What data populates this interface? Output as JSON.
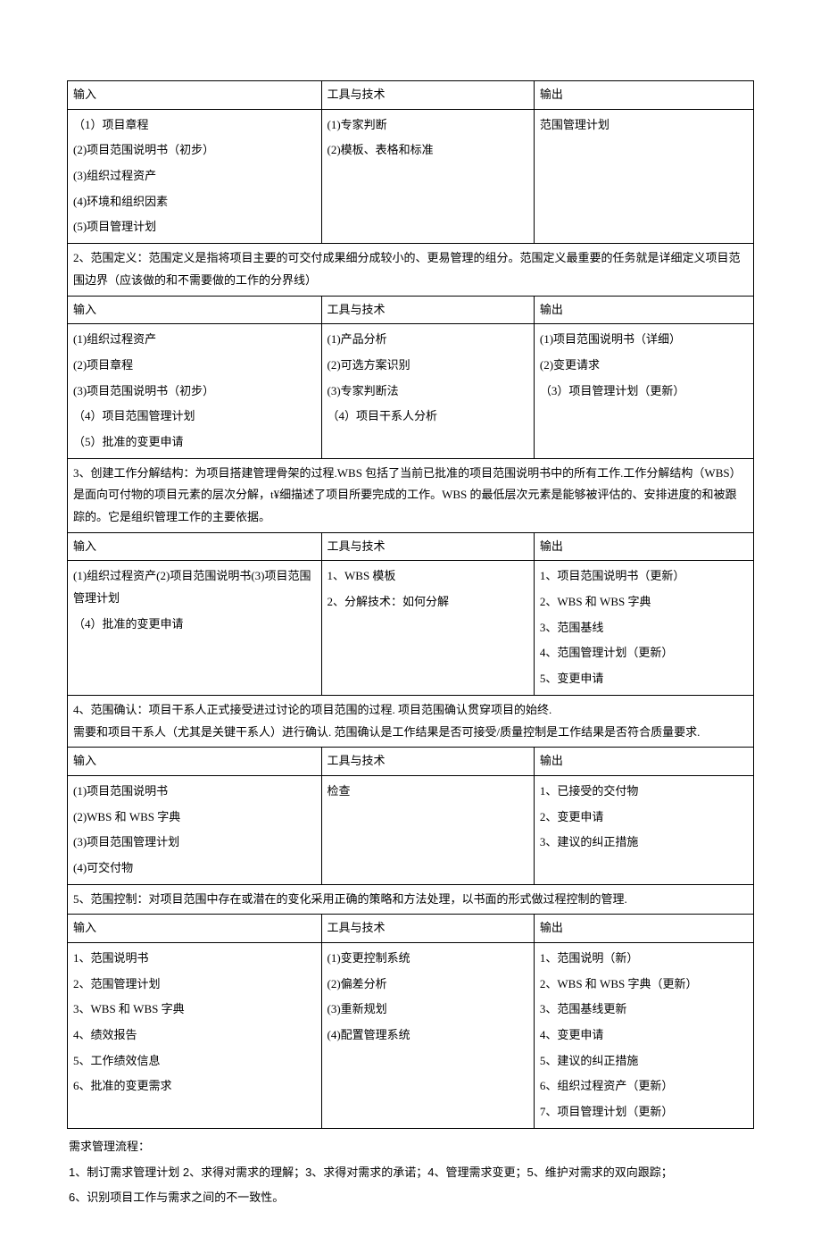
{
  "headers": {
    "input": "输入",
    "tools": "工具与技术",
    "output": "输出"
  },
  "section1": {
    "inputs": [
      "（1）项目章程",
      "(2)项目范围说明书（初步）",
      "(3)组织过程资产",
      "(4)环境和组织因素",
      "(5)项目管理计划"
    ],
    "tools": [
      "(1)专家判断",
      "(2)模板、表格和标准"
    ],
    "outputs": [
      "范围管理计划"
    ]
  },
  "desc2": "2、范围定义：范围定义是指将项目主要的可交付成果细分成较小的、更易管理的组分。范围定义最重要的任务就是详细定义项目范围边界（应该做的和不需要做的工作的分界线）",
  "section2": {
    "inputs": [
      "(1)组织过程资产",
      "(2)项目章程",
      "(3)项目范围说明书（初步）",
      "（4）项目范围管理计划",
      "（5）批准的变更申请"
    ],
    "tools": [
      "(1)产品分析",
      "(2)可选方案识别",
      "(3)专家判断法",
      "（4）项目干系人分析"
    ],
    "outputs": [
      "(1)项目范围说明书（详细）",
      "(2)变更请求",
      "（3）项目管理计划（更新）"
    ]
  },
  "desc3": "3、创建工作分解结构：为项目搭建管理骨架的过程.WBS 包括了当前已批准的项目范围说明书中的所有工作.工作分解结构（WBS）是面向可付物的项目元素的层次分解，t¥细描述了项目所要完成的工作。WBS 的最低层次元素是能够被评估的、安排进度的和被跟踪的。它是组织管理工作的主要依据。",
  "section3": {
    "inputs": [
      "(1)组织过程资产(2)项目范围说明书(3)项目范围管理计划",
      "（4）批准的变更申请"
    ],
    "tools": [
      "1、WBS 模板",
      "2、分解技术：如何分解"
    ],
    "outputs": [
      "1、项目范围说明书（更新）",
      "2、WBS 和 WBS 字典",
      "3、范围基线",
      "4、范围管理计划（更新）",
      "5、变更申请"
    ]
  },
  "desc4": "4、范围确认：项目干系人正式接受进过讨论的项目范围的过程. 项目范围确认贯穿项目的始终.\n需要和项目干系人（尤其是关键干系人）进行确认. 范围确认是工作结果是否可接受/质量控制是工作结果是否符合质量要求.",
  "section4": {
    "inputs": [
      "(1)项目范围说明书",
      "(2)WBS 和 WBS 字典",
      "(3)项目范围管理计划",
      "(4)可交付物"
    ],
    "tools": [
      "检查"
    ],
    "outputs": [
      "1、已接受的交付物",
      "2、变更申请",
      "3、建议的纠正措施"
    ]
  },
  "desc5": "5、范围控制：对项目范围中存在或潜在的变化采用正确的策略和方法处理，以书面的形式做过程控制的管理.",
  "section5": {
    "inputs": [
      "1、范围说明书",
      "2、范围管理计划",
      "3、WBS 和 WBS 字典",
      "4、绩效报告",
      "5、工作绩效信息",
      "6、批准的变更需求"
    ],
    "tools": [
      "(1)变更控制系统",
      "(2)偏差分析",
      "(3)重新规划",
      "(4)配置管理系统"
    ],
    "outputs": [
      "1、范围说明（新）",
      "2、WBS 和 WBS 字典（更新）",
      "3、范围基线更新",
      "4、变更申请",
      "5、建议的纠正措施",
      "6、组织过程资产（更新）",
      "7、项目管理计划（更新）"
    ]
  },
  "footer": {
    "title": "需求管理流程：",
    "line1": "1、制订需求管理计划 2、求得对需求的理解；3、求得对需求的承诺；4、管理需求变更；5、维护对需求的双向跟踪；",
    "line2": "6、识别项目工作与需求之间的不一致性。"
  }
}
